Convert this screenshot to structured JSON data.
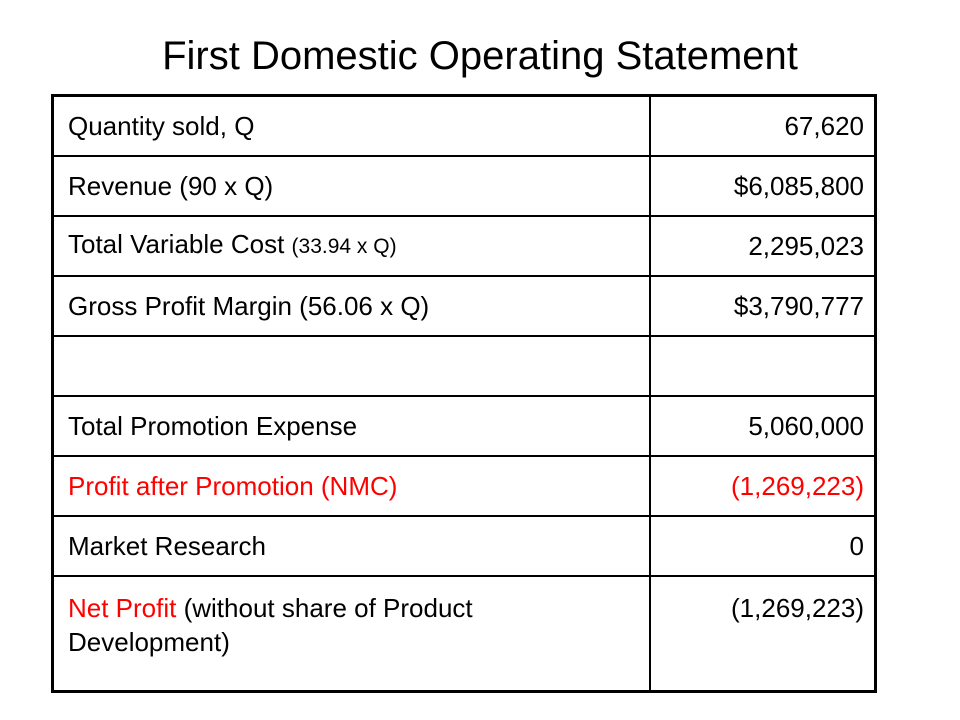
{
  "title": "First Domestic Operating Statement",
  "rows": [
    {
      "label": "Quantity sold, Q",
      "value": "67,620"
    },
    {
      "label": "Revenue (90 x Q)",
      "value": "$6,085,800"
    },
    {
      "label": "Total Variable Cost",
      "label_note": "(33.94 x Q)",
      "value": "2,295,023"
    },
    {
      "label": "Gross Profit Margin (56.06 x Q)",
      "value": "$3,790,777"
    },
    {
      "label": "",
      "value": ""
    },
    {
      "label": "Total Promotion Expense",
      "value": "5,060,000"
    },
    {
      "label": "Profit after Promotion (NMC)",
      "value": "(1,269,223)"
    },
    {
      "label": "Market Research",
      "value": "0"
    },
    {
      "label_highlight": "Net Profit",
      "label_rest": " (without share of Product Development)",
      "value": "(1,269,223)"
    }
  ],
  "colors": {
    "highlight": "#ff0000",
    "text": "#000000",
    "border": "#000000"
  }
}
